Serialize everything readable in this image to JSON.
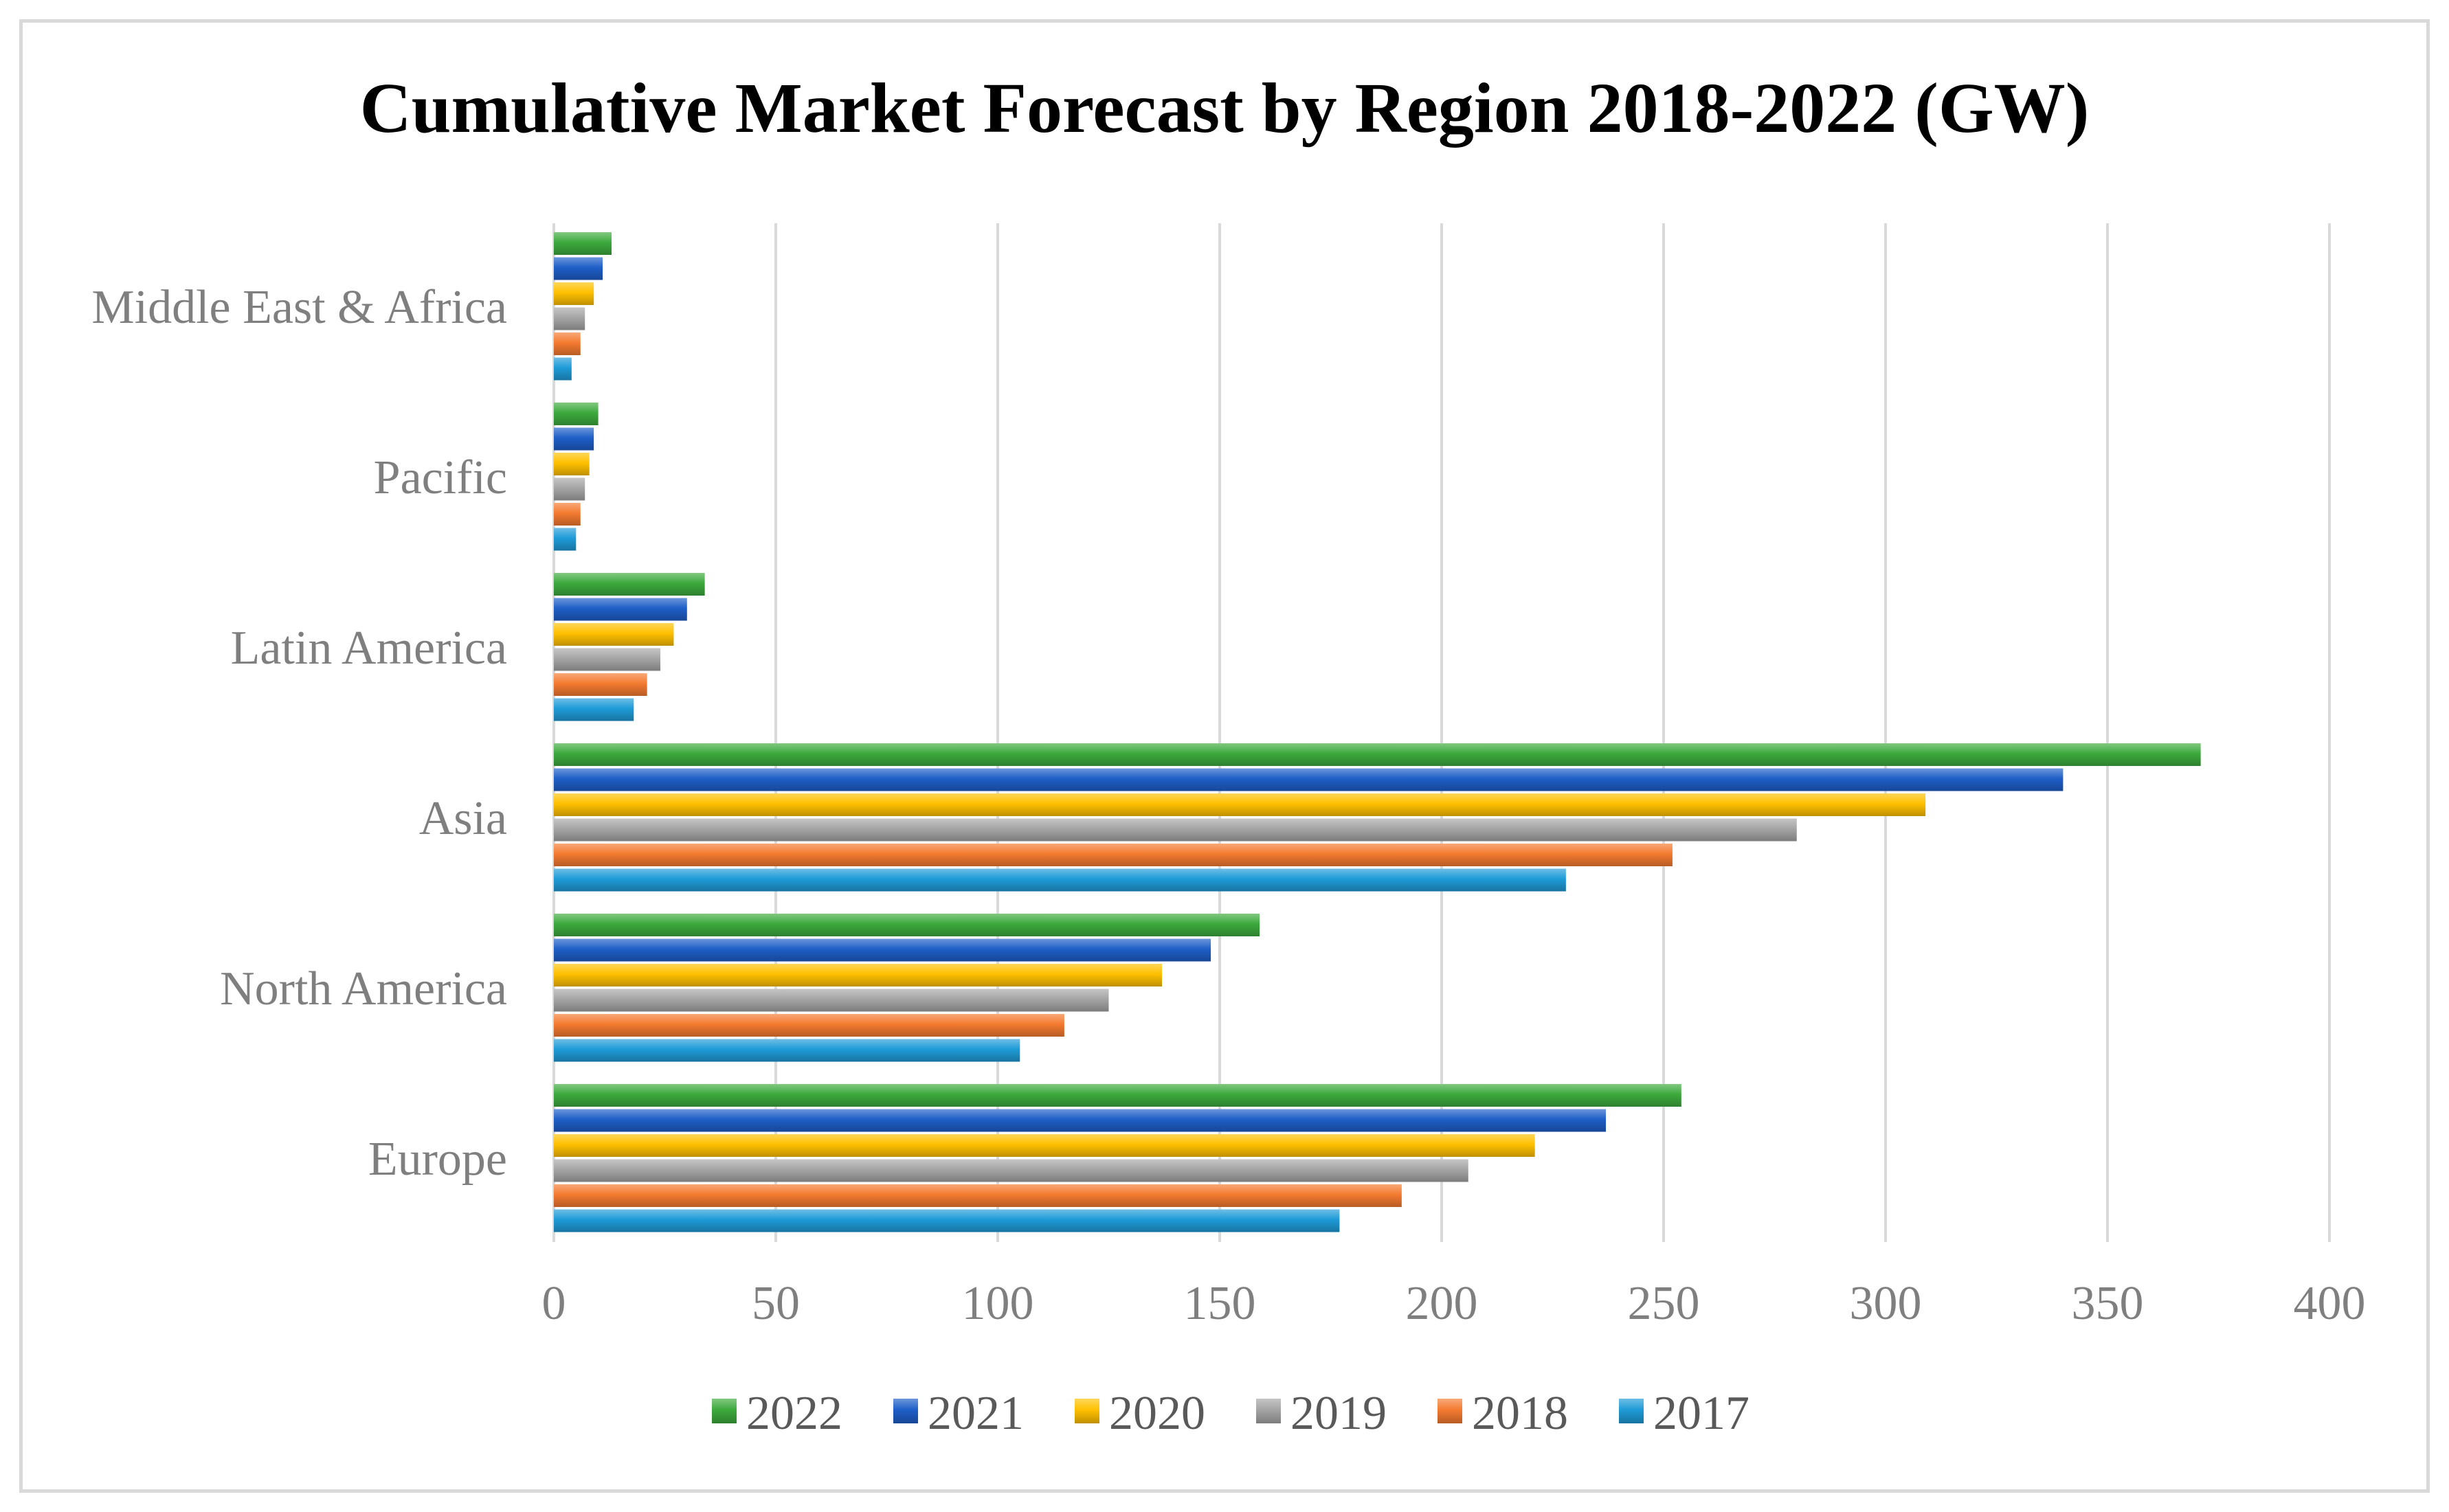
{
  "chart_data": {
    "type": "bar",
    "orientation": "horizontal",
    "title": "Cumulative Market Forecast by Region 2018-2022 (GW)",
    "xlabel": "",
    "ylabel": "",
    "xlim": [
      0,
      400
    ],
    "x_ticks": [
      0,
      50,
      100,
      150,
      200,
      250,
      300,
      350,
      400
    ],
    "grid": true,
    "legend_position": "bottom",
    "categories": [
      "Europe",
      "North America",
      "Asia",
      "Latin America",
      "Pacific",
      "Middle East & Africa"
    ],
    "series": [
      {
        "name": "2017",
        "color": "#1f9bd7",
        "values": [
          177,
          105,
          228,
          18,
          5,
          4
        ]
      },
      {
        "name": "2018",
        "color": "#f47a30",
        "values": [
          191,
          115,
          252,
          21,
          6,
          6
        ]
      },
      {
        "name": "2019",
        "color": "#a5a5a5",
        "values": [
          206,
          125,
          280,
          24,
          7,
          7
        ]
      },
      {
        "name": "2020",
        "color": "#ffc000",
        "values": [
          221,
          137,
          309,
          27,
          8,
          9
        ]
      },
      {
        "name": "2021",
        "color": "#1f5fc8",
        "values": [
          237,
          148,
          340,
          30,
          9,
          11
        ]
      },
      {
        "name": "2022",
        "color": "#3daa3d",
        "values": [
          254,
          159,
          371,
          34,
          10,
          13
        ]
      }
    ],
    "legend_order": [
      "2022",
      "2021",
      "2020",
      "2019",
      "2018",
      "2017"
    ]
  }
}
